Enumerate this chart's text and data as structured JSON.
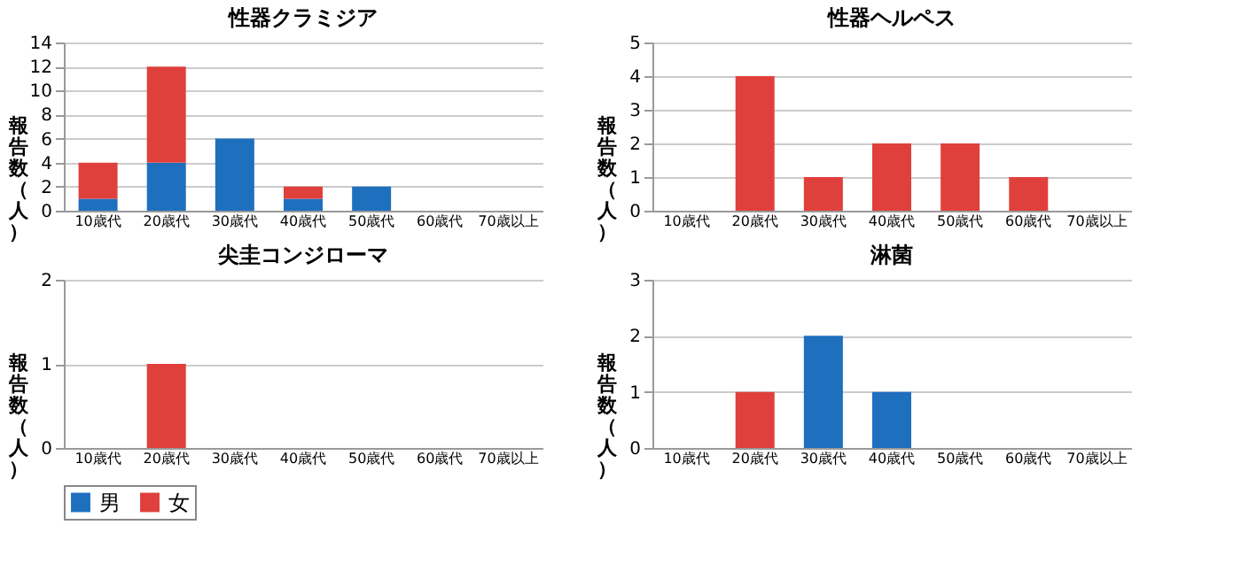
{
  "chart_data": [
    {
      "type": "bar",
      "title": "性器クラミジア",
      "ylabel": "報告数（人）",
      "categories": [
        "10歳代",
        "20歳代",
        "30歳代",
        "40歳代",
        "50歳代",
        "60歳代",
        "70歳以上"
      ],
      "stacked": true,
      "ylim": [
        0,
        14
      ],
      "yticks": [
        0,
        2,
        4,
        6,
        8,
        10,
        12,
        14
      ],
      "grid": "y",
      "legend": "bottom",
      "series": [
        {
          "name": "男",
          "color": "#1f6fbf",
          "values": [
            1,
            4,
            6,
            1,
            2,
            0,
            0
          ]
        },
        {
          "name": "女",
          "color": "#e0403c",
          "values": [
            3,
            8,
            0,
            1,
            0,
            0,
            0
          ]
        }
      ]
    },
    {
      "type": "bar",
      "title": "性器ヘルペス",
      "ylabel": "報告数（人）",
      "categories": [
        "10歳代",
        "20歳代",
        "30歳代",
        "40歳代",
        "50歳代",
        "60歳代",
        "70歳以上"
      ],
      "stacked": true,
      "ylim": [
        0,
        5
      ],
      "yticks": [
        0,
        1,
        2,
        3,
        4,
        5
      ],
      "grid": "y",
      "legend": "bottom",
      "series": [
        {
          "name": "男",
          "color": "#1f6fbf",
          "values": [
            0,
            0,
            0,
            0,
            0,
            0,
            0
          ]
        },
        {
          "name": "女",
          "color": "#e0403c",
          "values": [
            0,
            4,
            1,
            2,
            2,
            1,
            0
          ]
        }
      ]
    },
    {
      "type": "bar",
      "title": "尖圭コンジローマ",
      "ylabel": "報告数（人）",
      "categories": [
        "10歳代",
        "20歳代",
        "30歳代",
        "40歳代",
        "50歳代",
        "60歳代",
        "70歳以上"
      ],
      "stacked": true,
      "ylim": [
        0,
        2
      ],
      "yticks": [
        0,
        1,
        2
      ],
      "grid": "y",
      "legend": "bottom",
      "series": [
        {
          "name": "男",
          "color": "#1f6fbf",
          "values": [
            0,
            0,
            0,
            0,
            0,
            0,
            0
          ]
        },
        {
          "name": "女",
          "color": "#e0403c",
          "values": [
            0,
            1,
            0,
            0,
            0,
            0,
            0
          ]
        }
      ]
    },
    {
      "type": "bar",
      "title": "淋菌",
      "ylabel": "報告数（人）",
      "categories": [
        "10歳代",
        "20歳代",
        "30歳代",
        "40歳代",
        "50歳代",
        "60歳代",
        "70歳以上"
      ],
      "stacked": true,
      "ylim": [
        0,
        3
      ],
      "yticks": [
        0,
        1,
        2,
        3
      ],
      "grid": "y",
      "legend": "bottom",
      "series": [
        {
          "name": "男",
          "color": "#1f6fbf",
          "values": [
            0,
            0,
            2,
            1,
            0,
            0,
            0
          ]
        },
        {
          "name": "女",
          "color": "#e0403c",
          "values": [
            0,
            1,
            0,
            0,
            0,
            0,
            0
          ]
        }
      ]
    }
  ]
}
